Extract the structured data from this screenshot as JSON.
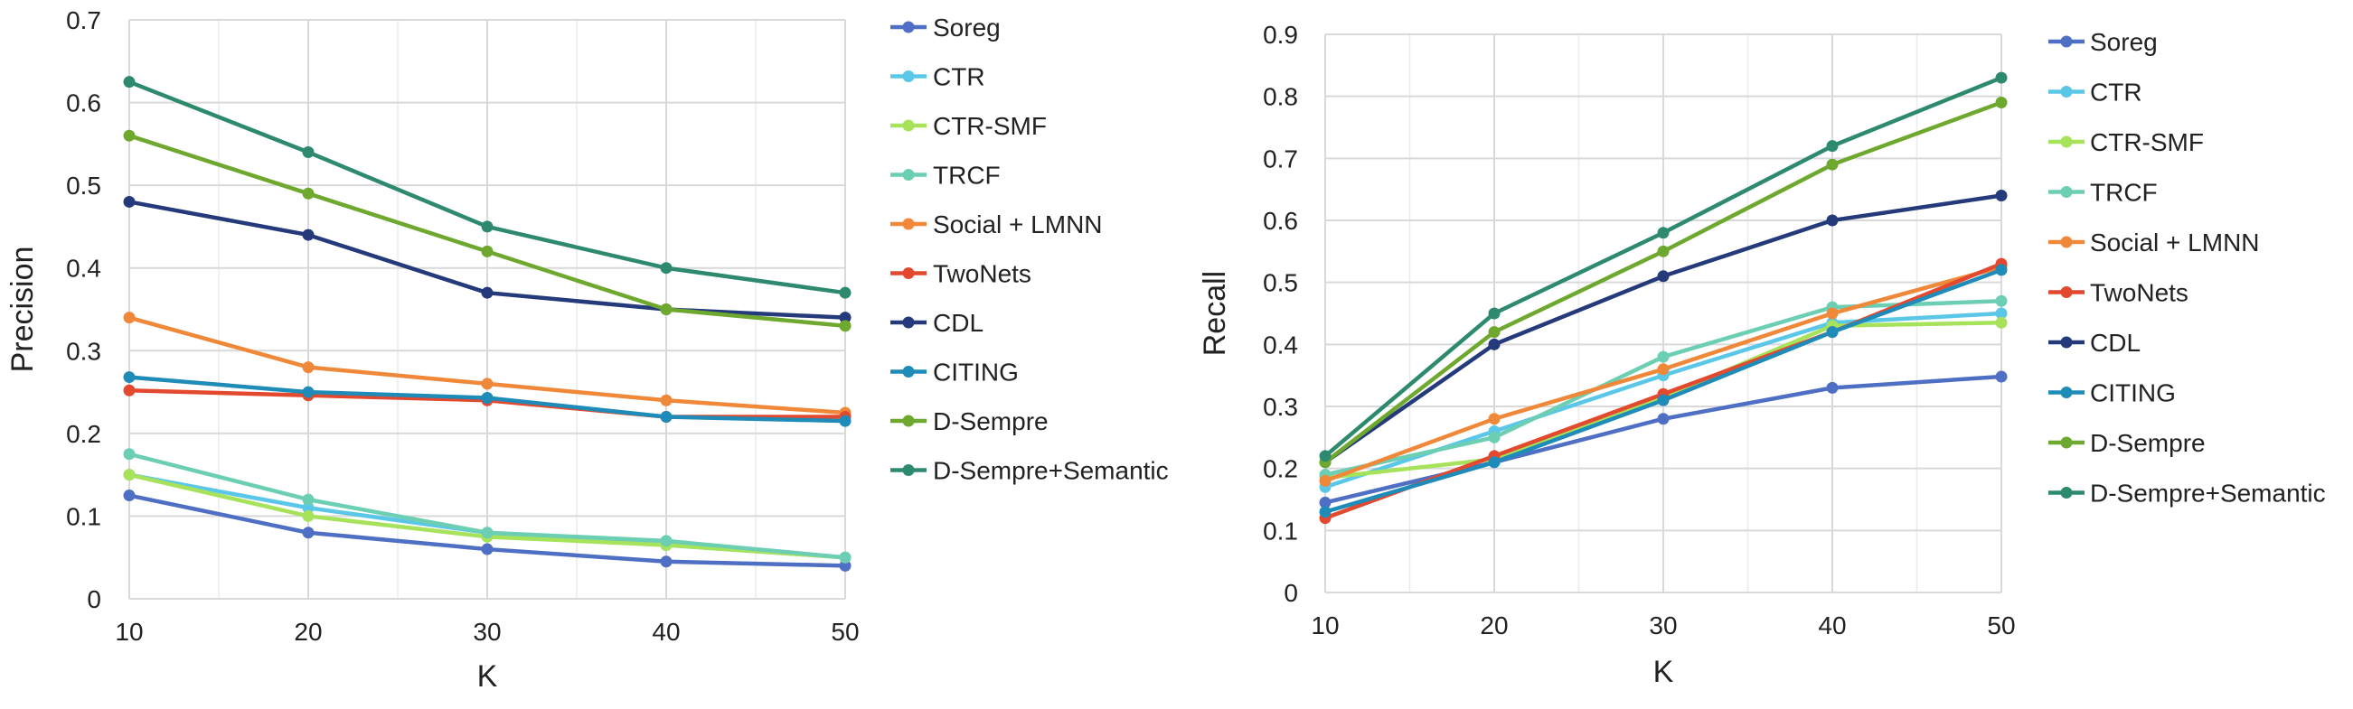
{
  "chart_data": [
    {
      "type": "line",
      "title": "",
      "xlabel": "K",
      "ylabel": "Precision",
      "x": [
        10,
        20,
        30,
        40,
        50
      ],
      "xlim": [
        10,
        50
      ],
      "ylim": [
        0,
        0.7
      ],
      "yticks": [
        0,
        0.1,
        0.2,
        0.3,
        0.4,
        0.5,
        0.6,
        0.7
      ],
      "ytick_labels": [
        "0",
        "0.1",
        "0.2",
        "0.3",
        "0.4",
        "0.5",
        "0.6",
        "0.7"
      ],
      "xtick_labels": [
        "10",
        "20",
        "30",
        "40",
        "50"
      ],
      "grid": true,
      "legend_position": "right",
      "series": [
        {
          "name": "Soreg",
          "color": "#4f6fc4",
          "values": [
            0.125,
            0.08,
            0.06,
            0.045,
            0.04
          ]
        },
        {
          "name": "CTR",
          "color": "#5bc7e8",
          "values": [
            0.15,
            0.11,
            0.08,
            0.065,
            0.05
          ]
        },
        {
          "name": "CTR-SMF",
          "color": "#a6e25a",
          "values": [
            0.15,
            0.1,
            0.075,
            0.065,
            0.05
          ]
        },
        {
          "name": "TRCF",
          "color": "#6ccfb4",
          "values": [
            0.175,
            0.12,
            0.08,
            0.07,
            0.05
          ]
        },
        {
          "name": "Social + LMNN",
          "color": "#f0883a",
          "values": [
            0.34,
            0.28,
            0.26,
            0.24,
            0.225
          ]
        },
        {
          "name": "TwoNets",
          "color": "#e2492e",
          "values": [
            0.252,
            0.246,
            0.24,
            0.22,
            0.22
          ]
        },
        {
          "name": "CDL",
          "color": "#243a7a",
          "values": [
            0.48,
            0.44,
            0.37,
            0.35,
            0.34
          ]
        },
        {
          "name": "CITING",
          "color": "#1f8bb8",
          "values": [
            0.268,
            0.25,
            0.243,
            0.22,
            0.215
          ]
        },
        {
          "name": "D-Sempre",
          "color": "#6ea82e",
          "values": [
            0.56,
            0.49,
            0.42,
            0.35,
            0.33
          ]
        },
        {
          "name": "D-Sempre+Semantic",
          "color": "#2e8a6e",
          "values": [
            0.625,
            0.54,
            0.45,
            0.4,
            0.37
          ]
        }
      ]
    },
    {
      "type": "line",
      "title": "",
      "xlabel": "K",
      "ylabel": "Recall",
      "x": [
        10,
        20,
        30,
        40,
        50
      ],
      "xlim": [
        10,
        50
      ],
      "ylim": [
        0,
        0.9
      ],
      "yticks": [
        0,
        0.1,
        0.2,
        0.3,
        0.4,
        0.5,
        0.6,
        0.7,
        0.8,
        0.9
      ],
      "ytick_labels": [
        "0",
        "0.1",
        "0.2",
        "0.3",
        "0.4",
        "0.5",
        "0.6",
        "0.7",
        "0.8",
        "0.9"
      ],
      "xtick_labels": [
        "10",
        "20",
        "30",
        "40",
        "50"
      ],
      "grid": true,
      "legend_position": "right",
      "series": [
        {
          "name": "Soreg",
          "color": "#4f6fc4",
          "values": [
            0.145,
            0.21,
            0.28,
            0.33,
            0.348
          ]
        },
        {
          "name": "CTR",
          "color": "#5bc7e8",
          "values": [
            0.17,
            0.26,
            0.35,
            0.435,
            0.45
          ]
        },
        {
          "name": "CTR-SMF",
          "color": "#a6e25a",
          "values": [
            0.185,
            0.215,
            0.315,
            0.43,
            0.435
          ]
        },
        {
          "name": "TRCF",
          "color": "#6ccfb4",
          "values": [
            0.19,
            0.25,
            0.38,
            0.46,
            0.47
          ]
        },
        {
          "name": "Social + LMNN",
          "color": "#f0883a",
          "values": [
            0.18,
            0.28,
            0.36,
            0.45,
            0.525
          ]
        },
        {
          "name": "TwoNets",
          "color": "#e2492e",
          "values": [
            0.12,
            0.22,
            0.32,
            0.42,
            0.53
          ]
        },
        {
          "name": "CDL",
          "color": "#243a7a",
          "values": [
            0.21,
            0.4,
            0.51,
            0.6,
            0.64
          ]
        },
        {
          "name": "CITING",
          "color": "#1f8bb8",
          "values": [
            0.13,
            0.21,
            0.31,
            0.42,
            0.52
          ]
        },
        {
          "name": "D-Sempre",
          "color": "#6ea82e",
          "values": [
            0.21,
            0.42,
            0.55,
            0.69,
            0.79
          ]
        },
        {
          "name": "D-Sempre+Semantic",
          "color": "#2e8a6e",
          "values": [
            0.22,
            0.45,
            0.58,
            0.72,
            0.83
          ]
        }
      ]
    }
  ]
}
